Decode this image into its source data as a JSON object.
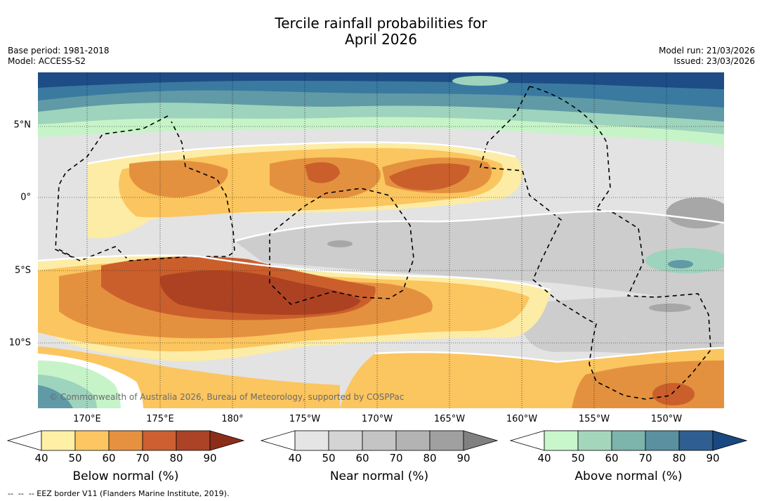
{
  "title": {
    "line1": "Tercile rainfall probabilities for",
    "line2": "April 2026"
  },
  "meta": {
    "base_period": "Base period: 1981-2018",
    "model": "Model: ACCESS-S2",
    "model_run": "Model run: 21/03/2026",
    "issued": "Issued: 23/03/2026"
  },
  "map": {
    "lat_labels": [
      "5°N",
      "0°",
      "5°S",
      "10°S"
    ],
    "lon_labels": [
      "170°E",
      "175°E",
      "180°",
      "175°W",
      "170°W",
      "165°W",
      "160°W",
      "155°W",
      "150°W"
    ],
    "copyright": "© Commonwealth of Australia 2026, Bureau of Meteorology, supported by COSPPac",
    "colors": {
      "ocean_blue_dark": "#1e4d85",
      "ocean_blue_mid": "#3a7aa0",
      "teal": "#5f9aa6",
      "green_light": "#9ed3bd",
      "green_pale": "#c6f4c8",
      "grey_light": "#e3e3e3",
      "grey_mid": "#cdcdcd",
      "grey_dark": "#a7a7a7",
      "yellow": "#fdeca5",
      "orange_light": "#fbc55f",
      "orange": "#e4913f",
      "orange_dark": "#cb5f2c",
      "brown": "#ad4223"
    }
  },
  "colorbars": {
    "below": {
      "title": "Below normal (%)",
      "ticks": [
        "40",
        "50",
        "60",
        "70",
        "80",
        "90"
      ],
      "colors": [
        "#ffffff",
        "#fff0a6",
        "#fdc663",
        "#e6913f",
        "#cc6030",
        "#ac4226",
        "#8c2d1a"
      ]
    },
    "near": {
      "title": "Near normal (%)",
      "ticks": [
        "40",
        "50",
        "60",
        "70",
        "80",
        "90"
      ],
      "colors": [
        "#ffffff",
        "#e5e5e5",
        "#d4d4d4",
        "#c4c4c4",
        "#b3b3b3",
        "#a0a0a0",
        "#808080"
      ]
    },
    "above": {
      "title": "Above normal (%)",
      "ticks": [
        "40",
        "50",
        "60",
        "70",
        "80",
        "90"
      ],
      "colors": [
        "#ffffff",
        "#c8f7cb",
        "#a4d6bc",
        "#7db4ac",
        "#5a90a0",
        "#2f5f92",
        "#1a4880"
      ]
    }
  },
  "footer": "--  --  -- EEZ border V11 (Flanders Marine Institute, 2019)."
}
